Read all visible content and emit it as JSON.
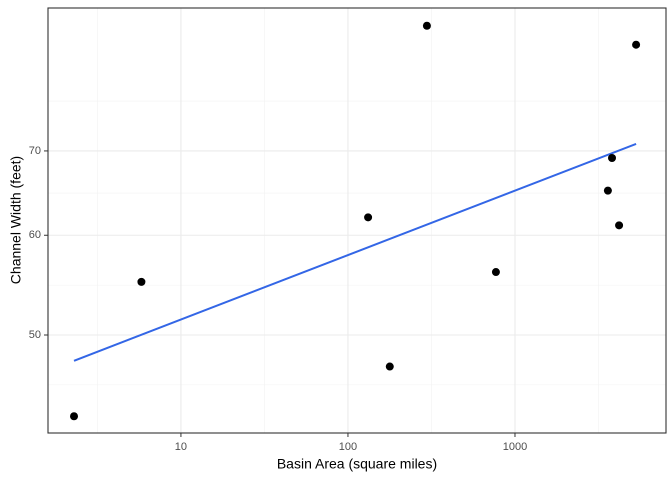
{
  "chart_data": {
    "type": "scatter",
    "x_label": "Basin Area (square miles)",
    "y_label": "Channel Width (feet)",
    "x_log": true,
    "y_log": true,
    "grid": true,
    "series": [
      {
        "color": "#000000",
        "x": [
          2.29,
          5.8,
          132,
          178,
          297,
          769,
          3600,
          3810,
          4200,
          5310
        ],
        "values": [
          43.1,
          55.1,
          62.0,
          47.2,
          88.0,
          56.1,
          65.1,
          69.1,
          61.1,
          85.0
        ]
      }
    ],
    "trend": {
      "color": "#3366e6",
      "x": [
        2.29,
        5310
      ],
      "y": [
        47.7,
        70.9
      ]
    },
    "xlim": [
      1.6,
      8020
    ],
    "xticks": [
      10,
      100,
      1000
    ],
    "ylim": [
      41.8,
      90.9
    ],
    "yticks": [
      50,
      60,
      70
    ]
  }
}
